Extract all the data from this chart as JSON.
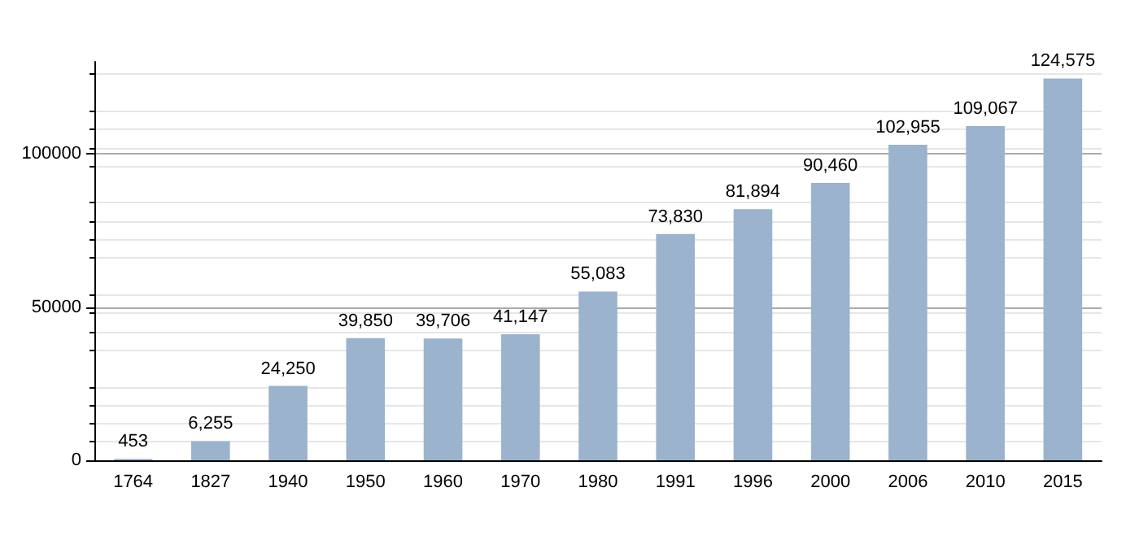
{
  "chart_data": {
    "type": "bar",
    "categories": [
      "1764",
      "1827",
      "1940",
      "1950",
      "1960",
      "1970",
      "1980",
      "1991",
      "1996",
      "2000",
      "2006",
      "2010",
      "2015"
    ],
    "values": [
      453,
      6255,
      24250,
      39850,
      39706,
      41147,
      55083,
      73830,
      81894,
      90460,
      102955,
      109067,
      124575
    ],
    "value_labels": [
      "453",
      "6,255",
      "24,250",
      "39,850",
      "39,706",
      "41,147",
      "55,083",
      "73,830",
      "81,894",
      "90,460",
      "102,955",
      "109,067",
      "124,575"
    ],
    "color": "#9bb3cc",
    "ylim": [
      0,
      130000
    ],
    "yticks": [
      0,
      50000,
      100000
    ],
    "grid": "y"
  }
}
